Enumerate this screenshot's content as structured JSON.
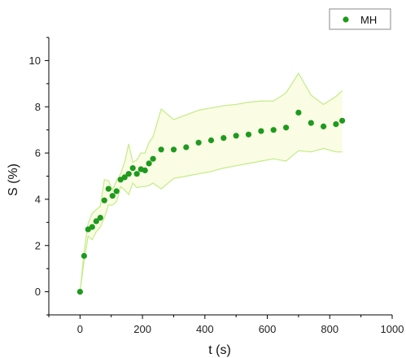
{
  "chart_data": {
    "type": "scatter",
    "xlabel": "t (s)",
    "ylabel": "S (%)",
    "xlim": [
      -100,
      1000
    ],
    "ylim": [
      -1,
      11
    ],
    "xticks": [
      0,
      200,
      400,
      600,
      800,
      1000
    ],
    "xtick_labels": [
      "0",
      "200",
      "400",
      "600",
      "800",
      "1000"
    ],
    "yticks": [
      0,
      2,
      4,
      6,
      8,
      10
    ],
    "ytick_labels": [
      "0",
      "2",
      "4",
      "6",
      "8",
      "10"
    ],
    "grid": false,
    "legend_position": "top-right",
    "series": [
      {
        "name": "MH",
        "color": "#1e9a1e",
        "band_fill": "#fafce4",
        "band_stroke": "#c4ec86",
        "x": [
          0,
          13,
          26,
          39,
          52,
          65,
          78,
          91,
          104,
          117,
          130,
          143,
          156,
          169,
          182,
          195,
          208,
          221,
          234,
          260,
          300,
          340,
          380,
          420,
          460,
          500,
          540,
          580,
          620,
          660,
          700,
          740,
          780,
          820,
          840
        ],
        "y": [
          0.0,
          1.55,
          2.7,
          2.8,
          3.05,
          3.2,
          3.95,
          4.45,
          4.15,
          4.35,
          4.85,
          4.95,
          5.1,
          5.35,
          5.1,
          5.3,
          5.25,
          5.55,
          5.75,
          6.15,
          6.15,
          6.25,
          6.45,
          6.55,
          6.65,
          6.75,
          6.8,
          6.95,
          7.0,
          7.1,
          7.75,
          7.3,
          7.15,
          7.25,
          7.4
        ],
        "band_x": [
          0,
          13,
          26,
          39,
          52,
          65,
          78,
          91,
          104,
          117,
          130,
          143,
          156,
          169,
          182,
          195,
          208,
          221,
          234,
          260,
          300,
          340,
          380,
          420,
          460,
          500,
          540,
          580,
          620,
          660,
          700,
          740,
          780,
          820,
          840
        ],
        "band_upper": [
          0.0,
          1.75,
          2.95,
          3.4,
          3.55,
          3.7,
          4.85,
          4.8,
          4.4,
          4.8,
          5.1,
          5.6,
          6.4,
          5.6,
          5.7,
          6.0,
          6.0,
          6.45,
          6.7,
          7.9,
          7.45,
          7.65,
          7.85,
          7.95,
          8.05,
          8.1,
          8.2,
          8.25,
          8.25,
          8.6,
          9.45,
          8.5,
          8.1,
          8.45,
          8.7
        ],
        "band_lower": [
          0.0,
          1.35,
          2.4,
          2.25,
          2.6,
          2.8,
          3.2,
          3.75,
          3.75,
          3.9,
          4.55,
          4.4,
          4.2,
          4.7,
          4.5,
          4.55,
          4.55,
          4.6,
          4.7,
          4.45,
          4.9,
          5.0,
          5.1,
          5.2,
          5.35,
          5.45,
          5.55,
          5.65,
          5.75,
          5.65,
          6.1,
          6.05,
          6.2,
          6.05,
          6.05
        ]
      }
    ]
  }
}
